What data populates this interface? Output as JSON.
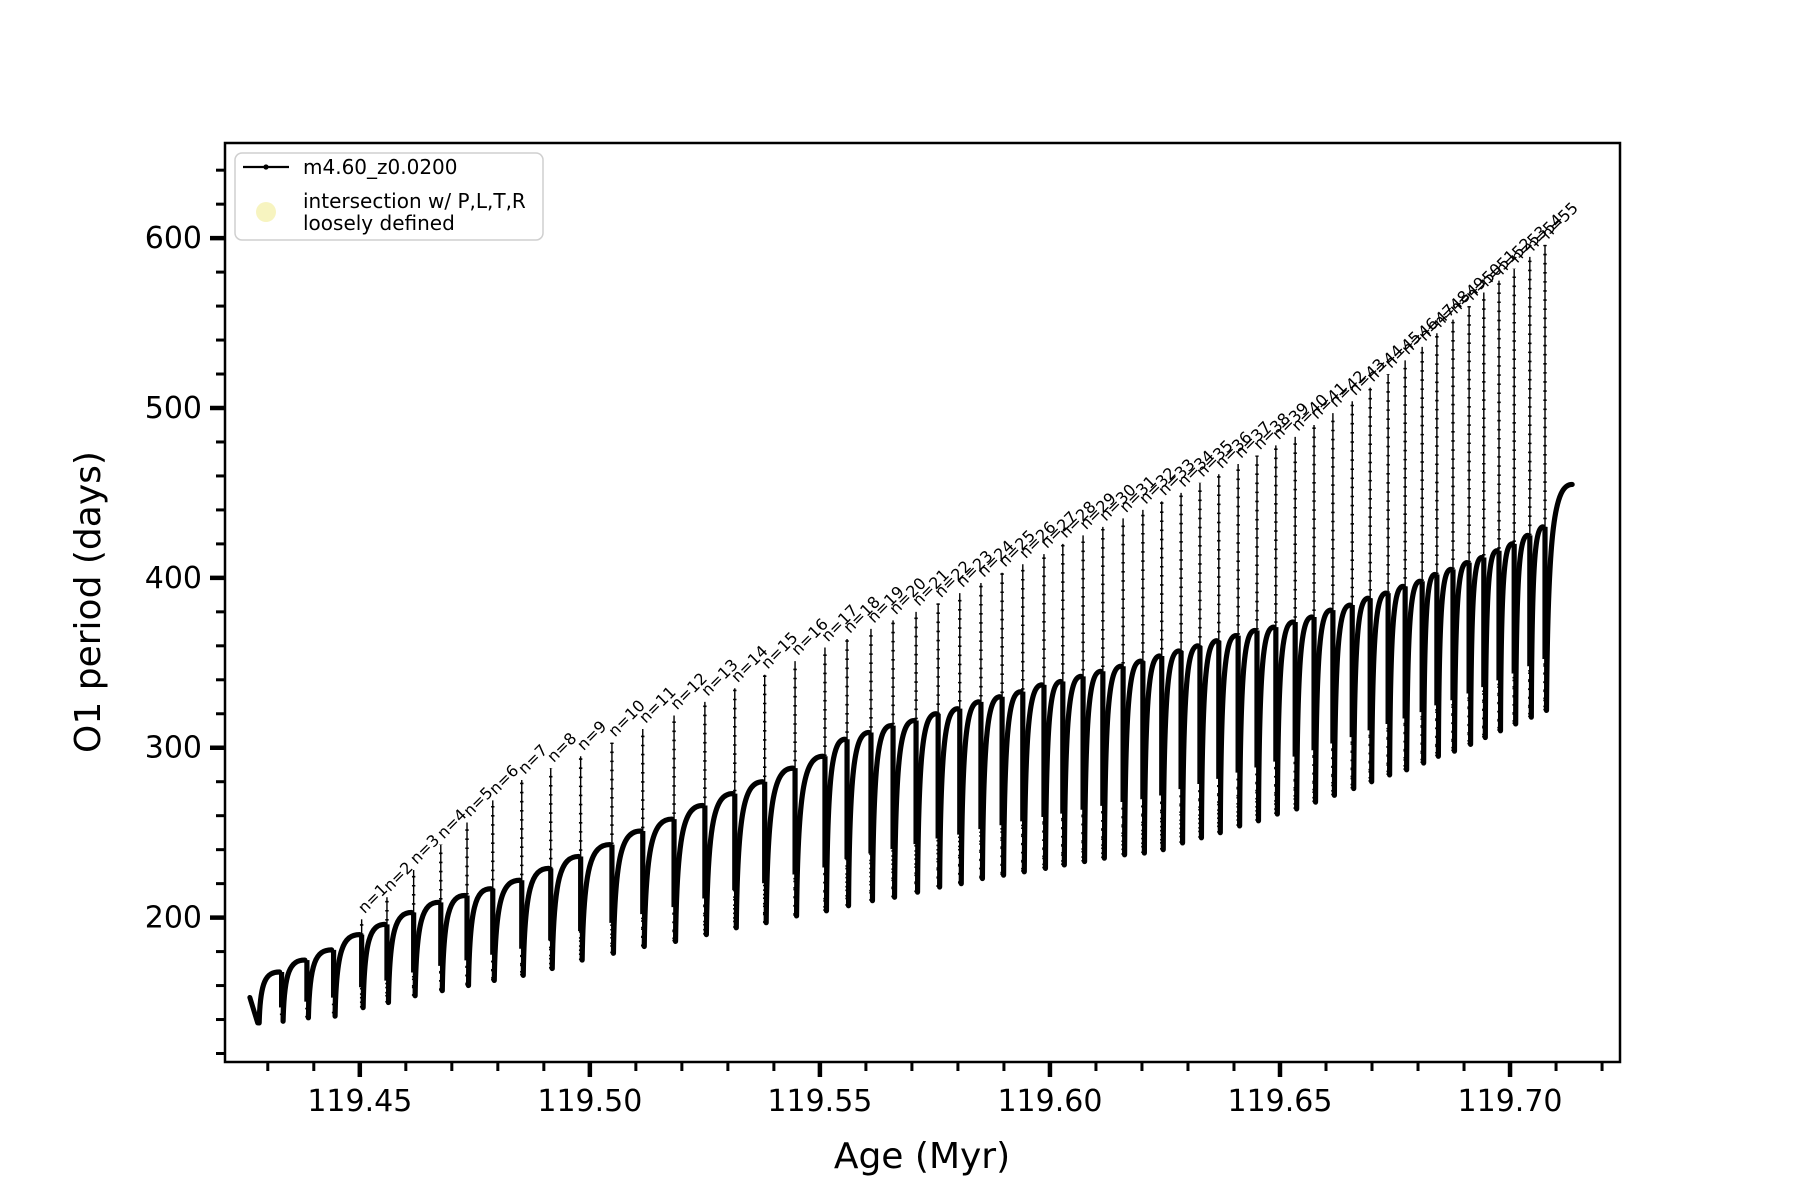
{
  "figure": {
    "background": "#ffffff",
    "line_color": "#000000",
    "intersection_marker_color": "#f7f3bd"
  },
  "legend": {
    "items": [
      {
        "marker": "line-dot-icon",
        "label": "m4.60_z0.0200",
        "color": "#000000"
      },
      {
        "marker": "circle-icon",
        "label_line1": "intersection w/ P,L,T,R",
        "label_line2": "loosely defined",
        "color": "#f7f3bd"
      }
    ]
  },
  "chart_data": {
    "type": "line",
    "title": "",
    "xlabel": "Age (Myr)",
    "ylabel": "O1 period (days)",
    "series_name": "m4.60_z0.0200",
    "xlim": [
      119.4207,
      119.7239
    ],
    "ylim": [
      115,
      656
    ],
    "x_major_ticks": [
      119.45,
      119.5,
      119.55,
      119.6,
      119.65,
      119.7
    ],
    "x_major_labels": [
      "119.45",
      "119.50",
      "119.55",
      "119.60",
      "119.65",
      "119.70"
    ],
    "x_minor_step": 0.01,
    "y_major_ticks": [
      200,
      300,
      400,
      500,
      600
    ],
    "y_major_labels": [
      "200",
      "300",
      "400",
      "500",
      "600"
    ],
    "y_minor_step": 20,
    "grid": false,
    "legend_position": "upper-left",
    "annotation_prefix": "n=",
    "lead_in": {
      "age": 119.4261,
      "period": 153
    },
    "tail_end": {
      "age": 119.7135,
      "period": 455
    },
    "pulses_fields": [
      "n",
      "age",
      "spike_top_days",
      "dip_days",
      "arch_top_days"
    ],
    "pulses": [
      [
        0,
        119.4278,
        null,
        138,
        168
      ],
      [
        0,
        119.433,
        null,
        139,
        175
      ],
      [
        0,
        119.4385,
        null,
        141,
        181
      ],
      [
        0,
        119.4443,
        null,
        142,
        190
      ],
      [
        1,
        119.4504,
        199,
        147,
        196
      ],
      [
        2,
        119.4559,
        212,
        150,
        203
      ],
      [
        3,
        119.4617,
        228,
        154,
        209
      ],
      [
        4,
        119.4676,
        243,
        157,
        213
      ],
      [
        5,
        119.4733,
        256,
        160,
        217
      ],
      [
        6,
        119.4789,
        269,
        163,
        222
      ],
      [
        7,
        119.4852,
        281,
        166,
        229
      ],
      [
        8,
        119.4915,
        288,
        170,
        236
      ],
      [
        9,
        119.498,
        295,
        175,
        243
      ],
      [
        10,
        119.5048,
        303,
        179,
        251
      ],
      [
        11,
        119.5115,
        311,
        183,
        258
      ],
      [
        12,
        119.5183,
        319,
        186,
        266
      ],
      [
        13,
        119.525,
        327,
        190,
        273
      ],
      [
        14,
        119.5315,
        335,
        194,
        280
      ],
      [
        15,
        119.538,
        343,
        197,
        288
      ],
      [
        16,
        119.5446,
        351,
        201,
        295
      ],
      [
        17,
        119.5511,
        359,
        204,
        305
      ],
      [
        18,
        119.5559,
        364,
        207,
        309
      ],
      [
        19,
        119.5611,
        370,
        210,
        313
      ],
      [
        20,
        119.5659,
        375,
        212,
        316
      ],
      [
        21,
        119.5709,
        380,
        215,
        320
      ],
      [
        22,
        119.5757,
        385,
        218,
        323
      ],
      [
        23,
        119.5804,
        391,
        220,
        327
      ],
      [
        24,
        119.585,
        397,
        223,
        330
      ],
      [
        25,
        119.5896,
        403,
        225,
        333
      ],
      [
        26,
        119.5941,
        408,
        227,
        337
      ],
      [
        27,
        119.5987,
        414,
        229,
        339
      ],
      [
        28,
        119.6028,
        420,
        231,
        342
      ],
      [
        29,
        119.6072,
        425,
        233,
        345
      ],
      [
        30,
        119.6115,
        430,
        235,
        348
      ],
      [
        31,
        119.6159,
        435,
        237,
        351
      ],
      [
        32,
        119.6202,
        440,
        238,
        354
      ],
      [
        33,
        119.6243,
        445,
        240,
        357
      ],
      [
        34,
        119.6285,
        450,
        244,
        360
      ],
      [
        35,
        119.6326,
        456,
        247,
        363
      ],
      [
        36,
        119.6367,
        461,
        250,
        366
      ],
      [
        37,
        119.6409,
        467,
        254,
        369
      ],
      [
        38,
        119.645,
        472,
        257,
        371
      ],
      [
        39,
        119.6491,
        478,
        261,
        374
      ],
      [
        40,
        119.6533,
        483,
        264,
        377
      ],
      [
        41,
        119.6574,
        490,
        268,
        381
      ],
      [
        42,
        119.6615,
        497,
        272,
        384
      ],
      [
        43,
        119.6657,
        504,
        276,
        388
      ],
      [
        44,
        119.6696,
        512,
        280,
        391
      ],
      [
        45,
        119.6735,
        520,
        284,
        395
      ],
      [
        46,
        119.6772,
        528,
        287,
        398
      ],
      [
        47,
        119.6809,
        536,
        291,
        402
      ],
      [
        48,
        119.6841,
        544,
        295,
        405
      ],
      [
        49,
        119.6876,
        552,
        298,
        409
      ],
      [
        50,
        119.6911,
        560,
        302,
        412
      ],
      [
        51,
        119.6943,
        568,
        306,
        416
      ],
      [
        52,
        119.6976,
        575,
        310,
        420
      ],
      [
        53,
        119.7009,
        582,
        314,
        425
      ],
      [
        54,
        119.7043,
        589,
        318,
        430
      ],
      [
        55,
        119.7076,
        596,
        322,
        455
      ]
    ]
  }
}
